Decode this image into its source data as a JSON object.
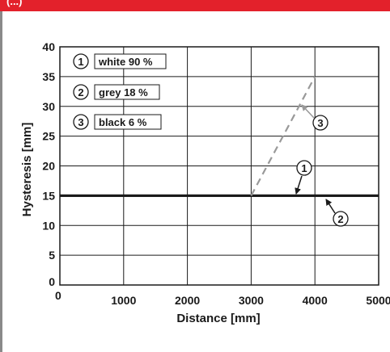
{
  "header": {
    "label": "(...)"
  },
  "chart_data": {
    "type": "line",
    "xlabel": "Distance [mm]",
    "ylabel": "Hysteresis [mm]",
    "xlim": [
      0,
      5000
    ],
    "ylim": [
      0,
      40
    ],
    "x_ticks": [
      "0",
      "1000",
      "2000",
      "3000",
      "4000",
      "5000"
    ],
    "y_ticks": [
      "0",
      "5",
      "10",
      "15",
      "20",
      "25",
      "30",
      "35",
      "40"
    ],
    "grid": true,
    "legend": [
      {
        "number": "1",
        "label": "white 90 %"
      },
      {
        "number": "2",
        "label": "grey 18 %"
      },
      {
        "number": "3",
        "label": "black 6 %"
      }
    ],
    "series": [
      {
        "marker": "1",
        "x": [
          0,
          5000
        ],
        "y": [
          15,
          15
        ],
        "color": "#1a1a1a",
        "style": "solid"
      },
      {
        "marker": "2",
        "x": [
          0,
          5000
        ],
        "y": [
          15,
          15
        ],
        "color": "#1a1a1a",
        "style": "solid"
      },
      {
        "marker": "3",
        "x": [
          3000,
          4000
        ],
        "y": [
          15,
          35
        ],
        "color": "#999999",
        "style": "dashed"
      }
    ]
  }
}
